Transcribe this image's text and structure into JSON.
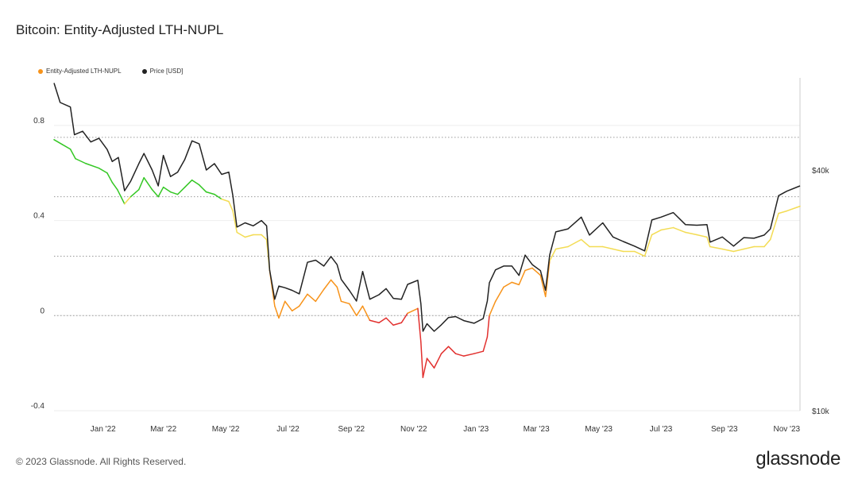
{
  "page": {
    "title": "Bitcoin: Entity-Adjusted LTH-NUPL",
    "footer": "© 2023 Glassnode. All Rights Reserved.",
    "brand": "glassnode"
  },
  "colors": {
    "nupl_green": "#34c724",
    "nupl_yellow": "#f3dc54",
    "nupl_orange": "#f7931a",
    "nupl_red": "#e2312f",
    "price": "#222222",
    "legend_nupl": "#f7931a",
    "legend_price": "#222222",
    "grid": "#bdbdbd"
  },
  "chart_data": {
    "type": "line",
    "x_axis": {
      "start": "2021-11-14",
      "end": "2023-11-14",
      "ticks": [
        {
          "date": "2022-01-01",
          "label": "Jan '22"
        },
        {
          "date": "2022-03-01",
          "label": "Mar '22"
        },
        {
          "date": "2022-05-01",
          "label": "May '22"
        },
        {
          "date": "2022-07-01",
          "label": "Jul '22"
        },
        {
          "date": "2022-09-01",
          "label": "Sep '22"
        },
        {
          "date": "2022-11-01",
          "label": "Nov '22"
        },
        {
          "date": "2023-01-01",
          "label": "Jan '23"
        },
        {
          "date": "2023-03-01",
          "label": "Mar '23"
        },
        {
          "date": "2023-05-01",
          "label": "May '23"
        },
        {
          "date": "2023-07-01",
          "label": "Jul '23"
        },
        {
          "date": "2023-09-01",
          "label": "Sep '23"
        },
        {
          "date": "2023-11-01",
          "label": "Nov '23"
        }
      ]
    },
    "y_left": {
      "range": [
        -0.4,
        1.0
      ],
      "ticks": [
        {
          "value": 0.8,
          "label": "0.8"
        },
        {
          "value": 0.4,
          "label": "0.4"
        },
        {
          "value": 0,
          "label": "0"
        },
        {
          "value": -0.4,
          "label": "-0.4"
        }
      ],
      "dotted_levels": [
        0.75,
        0.5,
        0.25,
        0
      ]
    },
    "y_right": {
      "scale": "log",
      "range": [
        10000,
        68000
      ],
      "ticks": [
        {
          "value": 40000,
          "label": "$40k"
        },
        {
          "value": 10000,
          "label": "$10k"
        }
      ]
    },
    "series": [
      {
        "name": "Entity-Adjusted LTH-NUPL",
        "axis": "left",
        "zones": [
          {
            "from": 0.5,
            "to": 1.0,
            "color": "nupl_green"
          },
          {
            "from": 0.25,
            "to": 0.5,
            "color": "nupl_yellow"
          },
          {
            "from": 0.0,
            "to": 0.25,
            "color": "nupl_orange"
          },
          {
            "from": -1.0,
            "to": 0.0,
            "color": "nupl_red"
          }
        ],
        "points": [
          [
            "2021-11-14",
            0.74
          ],
          [
            "2021-11-22",
            0.72
          ],
          [
            "2021-11-30",
            0.7
          ],
          [
            "2021-12-05",
            0.66
          ],
          [
            "2021-12-15",
            0.64
          ],
          [
            "2021-12-28",
            0.62
          ],
          [
            "2022-01-05",
            0.6
          ],
          [
            "2022-01-10",
            0.56
          ],
          [
            "2022-01-15",
            0.53
          ],
          [
            "2022-01-22",
            0.47
          ],
          [
            "2022-01-28",
            0.5
          ],
          [
            "2022-02-05",
            0.53
          ],
          [
            "2022-02-10",
            0.58
          ],
          [
            "2022-02-18",
            0.53
          ],
          [
            "2022-02-24",
            0.5
          ],
          [
            "2022-03-01",
            0.54
          ],
          [
            "2022-03-08",
            0.52
          ],
          [
            "2022-03-15",
            0.51
          ],
          [
            "2022-03-22",
            0.54
          ],
          [
            "2022-03-29",
            0.57
          ],
          [
            "2022-04-05",
            0.55
          ],
          [
            "2022-04-12",
            0.52
          ],
          [
            "2022-04-20",
            0.51
          ],
          [
            "2022-04-27",
            0.49
          ],
          [
            "2022-05-04",
            0.48
          ],
          [
            "2022-05-08",
            0.44
          ],
          [
            "2022-05-12",
            0.35
          ],
          [
            "2022-05-20",
            0.33
          ],
          [
            "2022-05-28",
            0.34
          ],
          [
            "2022-06-05",
            0.34
          ],
          [
            "2022-06-10",
            0.32
          ],
          [
            "2022-06-13",
            0.19
          ],
          [
            "2022-06-18",
            0.04
          ],
          [
            "2022-06-22",
            -0.01
          ],
          [
            "2022-06-28",
            0.06
          ],
          [
            "2022-07-05",
            0.02
          ],
          [
            "2022-07-12",
            0.04
          ],
          [
            "2022-07-20",
            0.09
          ],
          [
            "2022-07-28",
            0.06
          ],
          [
            "2022-08-05",
            0.11
          ],
          [
            "2022-08-12",
            0.15
          ],
          [
            "2022-08-18",
            0.12
          ],
          [
            "2022-08-22",
            0.06
          ],
          [
            "2022-08-30",
            0.05
          ],
          [
            "2022-09-06",
            0.0
          ],
          [
            "2022-09-12",
            0.04
          ],
          [
            "2022-09-19",
            -0.02
          ],
          [
            "2022-09-28",
            -0.03
          ],
          [
            "2022-10-05",
            -0.01
          ],
          [
            "2022-10-12",
            -0.04
          ],
          [
            "2022-10-20",
            -0.03
          ],
          [
            "2022-10-26",
            0.01
          ],
          [
            "2022-11-05",
            0.03
          ],
          [
            "2022-11-08",
            -0.11
          ],
          [
            "2022-11-10",
            -0.26
          ],
          [
            "2022-11-14",
            -0.18
          ],
          [
            "2022-11-21",
            -0.22
          ],
          [
            "2022-11-28",
            -0.16
          ],
          [
            "2022-12-05",
            -0.13
          ],
          [
            "2022-12-12",
            -0.16
          ],
          [
            "2022-12-20",
            -0.17
          ],
          [
            "2022-12-30",
            -0.16
          ],
          [
            "2023-01-08",
            -0.15
          ],
          [
            "2023-01-12",
            -0.09
          ],
          [
            "2023-01-14",
            0.0
          ],
          [
            "2023-01-20",
            0.06
          ],
          [
            "2023-01-28",
            0.12
          ],
          [
            "2023-02-05",
            0.14
          ],
          [
            "2023-02-12",
            0.13
          ],
          [
            "2023-02-18",
            0.19
          ],
          [
            "2023-02-25",
            0.2
          ],
          [
            "2023-03-05",
            0.17
          ],
          [
            "2023-03-10",
            0.08
          ],
          [
            "2023-03-14",
            0.23
          ],
          [
            "2023-03-20",
            0.28
          ],
          [
            "2023-04-01",
            0.29
          ],
          [
            "2023-04-14",
            0.32
          ],
          [
            "2023-04-22",
            0.29
          ],
          [
            "2023-05-05",
            0.29
          ],
          [
            "2023-05-15",
            0.28
          ],
          [
            "2023-05-25",
            0.27
          ],
          [
            "2023-06-05",
            0.27
          ],
          [
            "2023-06-15",
            0.25
          ],
          [
            "2023-06-22",
            0.34
          ],
          [
            "2023-07-01",
            0.36
          ],
          [
            "2023-07-13",
            0.37
          ],
          [
            "2023-07-25",
            0.35
          ],
          [
            "2023-08-05",
            0.34
          ],
          [
            "2023-08-15",
            0.33
          ],
          [
            "2023-08-18",
            0.29
          ],
          [
            "2023-08-30",
            0.28
          ],
          [
            "2023-09-10",
            0.27
          ],
          [
            "2023-09-20",
            0.28
          ],
          [
            "2023-09-30",
            0.29
          ],
          [
            "2023-10-10",
            0.29
          ],
          [
            "2023-10-16",
            0.32
          ],
          [
            "2023-10-24",
            0.43
          ],
          [
            "2023-11-01",
            0.44
          ],
          [
            "2023-11-14",
            0.46
          ]
        ]
      },
      {
        "name": "Price [USD]",
        "axis": "right",
        "color": "price",
        "points": [
          [
            "2021-11-14",
            66000
          ],
          [
            "2021-11-20",
            59000
          ],
          [
            "2021-11-30",
            57500
          ],
          [
            "2021-12-04",
            49000
          ],
          [
            "2021-12-12",
            50000
          ],
          [
            "2021-12-20",
            47000
          ],
          [
            "2021-12-28",
            48000
          ],
          [
            "2022-01-05",
            45000
          ],
          [
            "2022-01-10",
            42000
          ],
          [
            "2022-01-16",
            43000
          ],
          [
            "2022-01-22",
            35500
          ],
          [
            "2022-01-28",
            37500
          ],
          [
            "2022-02-05",
            41500
          ],
          [
            "2022-02-10",
            44000
          ],
          [
            "2022-02-18",
            40000
          ],
          [
            "2022-02-24",
            36500
          ],
          [
            "2022-03-01",
            43500
          ],
          [
            "2022-03-08",
            38500
          ],
          [
            "2022-03-15",
            39500
          ],
          [
            "2022-03-22",
            42500
          ],
          [
            "2022-03-29",
            47300
          ],
          [
            "2022-04-05",
            46500
          ],
          [
            "2022-04-12",
            40000
          ],
          [
            "2022-04-20",
            41500
          ],
          [
            "2022-04-27",
            39000
          ],
          [
            "2022-05-04",
            39500
          ],
          [
            "2022-05-08",
            34500
          ],
          [
            "2022-05-12",
            28800
          ],
          [
            "2022-05-20",
            29500
          ],
          [
            "2022-05-28",
            29000
          ],
          [
            "2022-06-05",
            29900
          ],
          [
            "2022-06-10",
            29000
          ],
          [
            "2022-06-13",
            22500
          ],
          [
            "2022-06-18",
            19000
          ],
          [
            "2022-06-22",
            20500
          ],
          [
            "2022-06-28",
            20300
          ],
          [
            "2022-07-05",
            20000
          ],
          [
            "2022-07-12",
            19600
          ],
          [
            "2022-07-20",
            23500
          ],
          [
            "2022-07-28",
            23800
          ],
          [
            "2022-08-05",
            23000
          ],
          [
            "2022-08-12",
            24300
          ],
          [
            "2022-08-18",
            23200
          ],
          [
            "2022-08-22",
            21300
          ],
          [
            "2022-08-30",
            20000
          ],
          [
            "2022-09-06",
            18800
          ],
          [
            "2022-09-12",
            22300
          ],
          [
            "2022-09-19",
            19000
          ],
          [
            "2022-09-28",
            19500
          ],
          [
            "2022-10-05",
            20200
          ],
          [
            "2022-10-12",
            19100
          ],
          [
            "2022-10-20",
            19000
          ],
          [
            "2022-10-26",
            20700
          ],
          [
            "2022-11-05",
            21200
          ],
          [
            "2022-11-08",
            18500
          ],
          [
            "2022-11-10",
            15800
          ],
          [
            "2022-11-14",
            16500
          ],
          [
            "2022-11-21",
            15800
          ],
          [
            "2022-11-28",
            16400
          ],
          [
            "2022-12-05",
            17100
          ],
          [
            "2022-12-12",
            17200
          ],
          [
            "2022-12-20",
            16800
          ],
          [
            "2022-12-30",
            16550
          ],
          [
            "2023-01-08",
            17000
          ],
          [
            "2023-01-12",
            18800
          ],
          [
            "2023-01-14",
            20900
          ],
          [
            "2023-01-20",
            22500
          ],
          [
            "2023-01-28",
            23000
          ],
          [
            "2023-02-05",
            23000
          ],
          [
            "2023-02-12",
            21800
          ],
          [
            "2023-02-18",
            24500
          ],
          [
            "2023-02-25",
            23200
          ],
          [
            "2023-03-05",
            22400
          ],
          [
            "2023-03-10",
            20000
          ],
          [
            "2023-03-14",
            24500
          ],
          [
            "2023-03-20",
            28000
          ],
          [
            "2023-04-01",
            28500
          ],
          [
            "2023-04-14",
            30500
          ],
          [
            "2023-04-22",
            27500
          ],
          [
            "2023-05-05",
            29500
          ],
          [
            "2023-05-15",
            27200
          ],
          [
            "2023-05-25",
            26500
          ],
          [
            "2023-06-05",
            25800
          ],
          [
            "2023-06-15",
            25100
          ],
          [
            "2023-06-22",
            30000
          ],
          [
            "2023-07-01",
            30500
          ],
          [
            "2023-07-13",
            31300
          ],
          [
            "2023-07-25",
            29200
          ],
          [
            "2023-08-05",
            29100
          ],
          [
            "2023-08-15",
            29200
          ],
          [
            "2023-08-18",
            26400
          ],
          [
            "2023-08-30",
            27200
          ],
          [
            "2023-09-10",
            25800
          ],
          [
            "2023-09-20",
            27100
          ],
          [
            "2023-09-30",
            27000
          ],
          [
            "2023-10-10",
            27500
          ],
          [
            "2023-10-16",
            28500
          ],
          [
            "2023-10-24",
            34500
          ],
          [
            "2023-11-01",
            35400
          ],
          [
            "2023-11-14",
            36500
          ]
        ]
      }
    ]
  }
}
